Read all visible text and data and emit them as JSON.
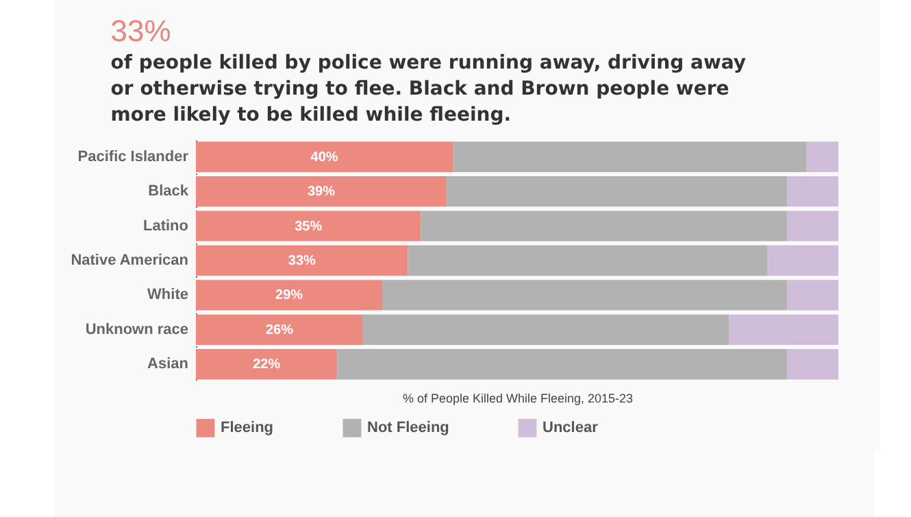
{
  "chart_data": {
    "type": "bar",
    "orientation": "horizontal",
    "stacked": true,
    "title": "33%",
    "subtitle": "of people killed by police were running away, driving away or otherwise trying to flee. Black and Brown people were more likely to be killed while fleeing.",
    "xlabel": "% of People Killed While Fleeing, 2015-23",
    "categories": [
      "Pacific Islander",
      "Black",
      "Latino",
      "Native American",
      "White",
      "Unknown race",
      "Asian"
    ],
    "xlim": [
      0,
      100
    ],
    "tick_labels": "y",
    "legend": "bottom left",
    "series": [
      {
        "name": "Fleeing",
        "color": "#ec8a80",
        "values": [
          40,
          39,
          35,
          33,
          29,
          26,
          22
        ],
        "value_labels": [
          "40%",
          "39%",
          "35%",
          "33%",
          "29%",
          "26%",
          "22%"
        ]
      },
      {
        "name": "Not Fleeing",
        "color": "#b2b2b2",
        "values": [
          55,
          53,
          57,
          56,
          63,
          57,
          70
        ]
      },
      {
        "name": "Unclear",
        "color": "#d0bdda",
        "values": [
          5,
          8,
          8,
          11,
          8,
          17,
          8
        ]
      }
    ]
  }
}
